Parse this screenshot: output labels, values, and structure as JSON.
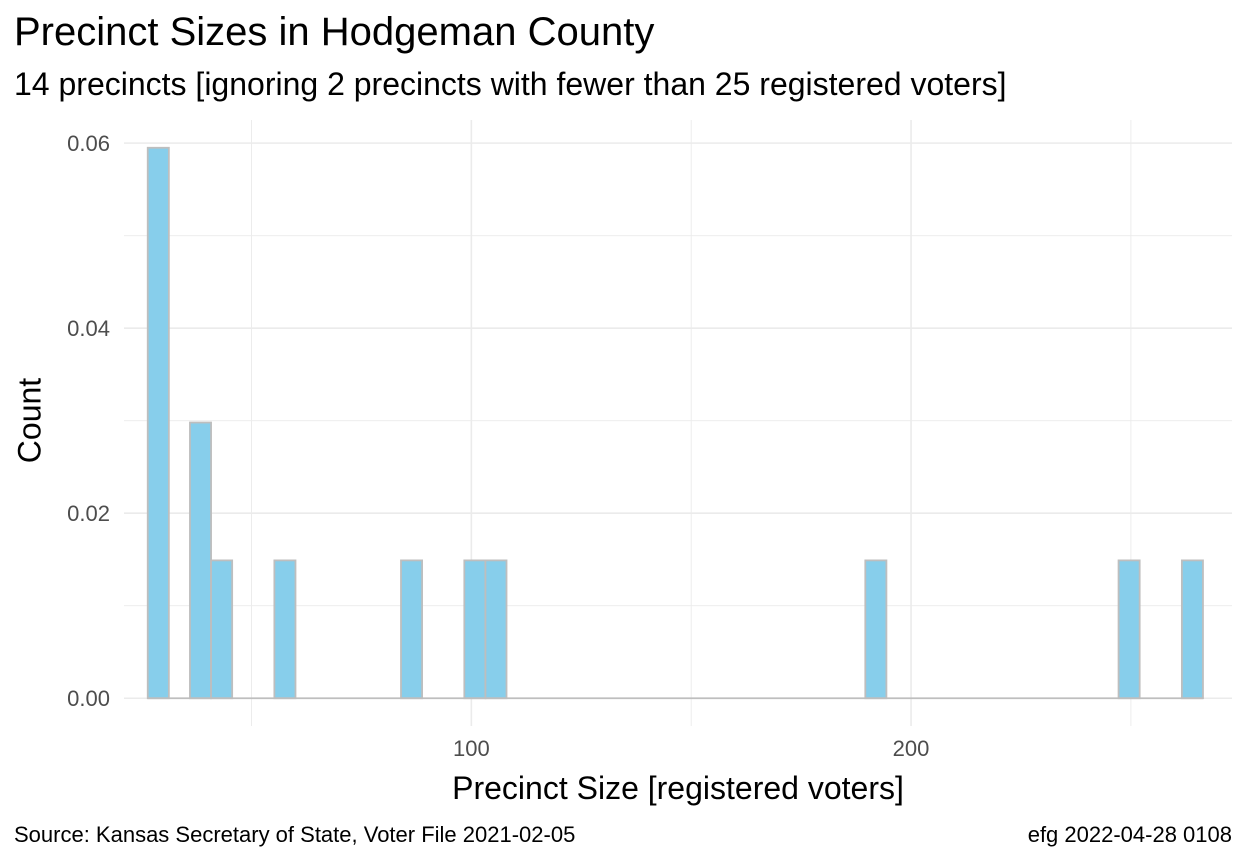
{
  "chart_data": {
    "type": "bar",
    "title": "Precinct Sizes in Hodgeman County",
    "subtitle": "14 precincts [ignoring 2 precincts with fewer than 25 registered voters]",
    "xlabel": "Precinct Size [registered voters]",
    "ylabel": "Count",
    "caption_left": "Source:  Kansas Secretary of State, Voter File  2021-02-05",
    "caption_right": "efg 2022-04-28 0108",
    "xlim": [
      21,
      273
    ],
    "ylim": [
      -0.003,
      0.0625
    ],
    "x_ticks": [
      {
        "value": 100,
        "label": "100"
      },
      {
        "value": 200,
        "label": "200"
      }
    ],
    "y_ticks": [
      {
        "value": 0,
        "label": "0.00"
      },
      {
        "value": 0.02,
        "label": "0.02"
      },
      {
        "value": 0.04,
        "label": "0.04"
      },
      {
        "value": 0.06,
        "label": "0.06"
      }
    ],
    "bin_width": 4.8,
    "bars": [
      {
        "x": 28.8,
        "value": 0.0595
      },
      {
        "x": 38.4,
        "value": 0.0298
      },
      {
        "x": 43.2,
        "value": 0.0149
      },
      {
        "x": 57.6,
        "value": 0.0149
      },
      {
        "x": 86.4,
        "value": 0.0149
      },
      {
        "x": 100.8,
        "value": 0.0149
      },
      {
        "x": 105.6,
        "value": 0.0149
      },
      {
        "x": 192.0,
        "value": 0.0149
      },
      {
        "x": 249.6,
        "value": 0.0149
      },
      {
        "x": 264.0,
        "value": 0.0149
      }
    ],
    "colors": {
      "bar_fill": "#87ceeb",
      "bar_stroke": "#bebebe",
      "grid": "#ebebeb"
    },
    "grid": true,
    "legend": "none"
  }
}
